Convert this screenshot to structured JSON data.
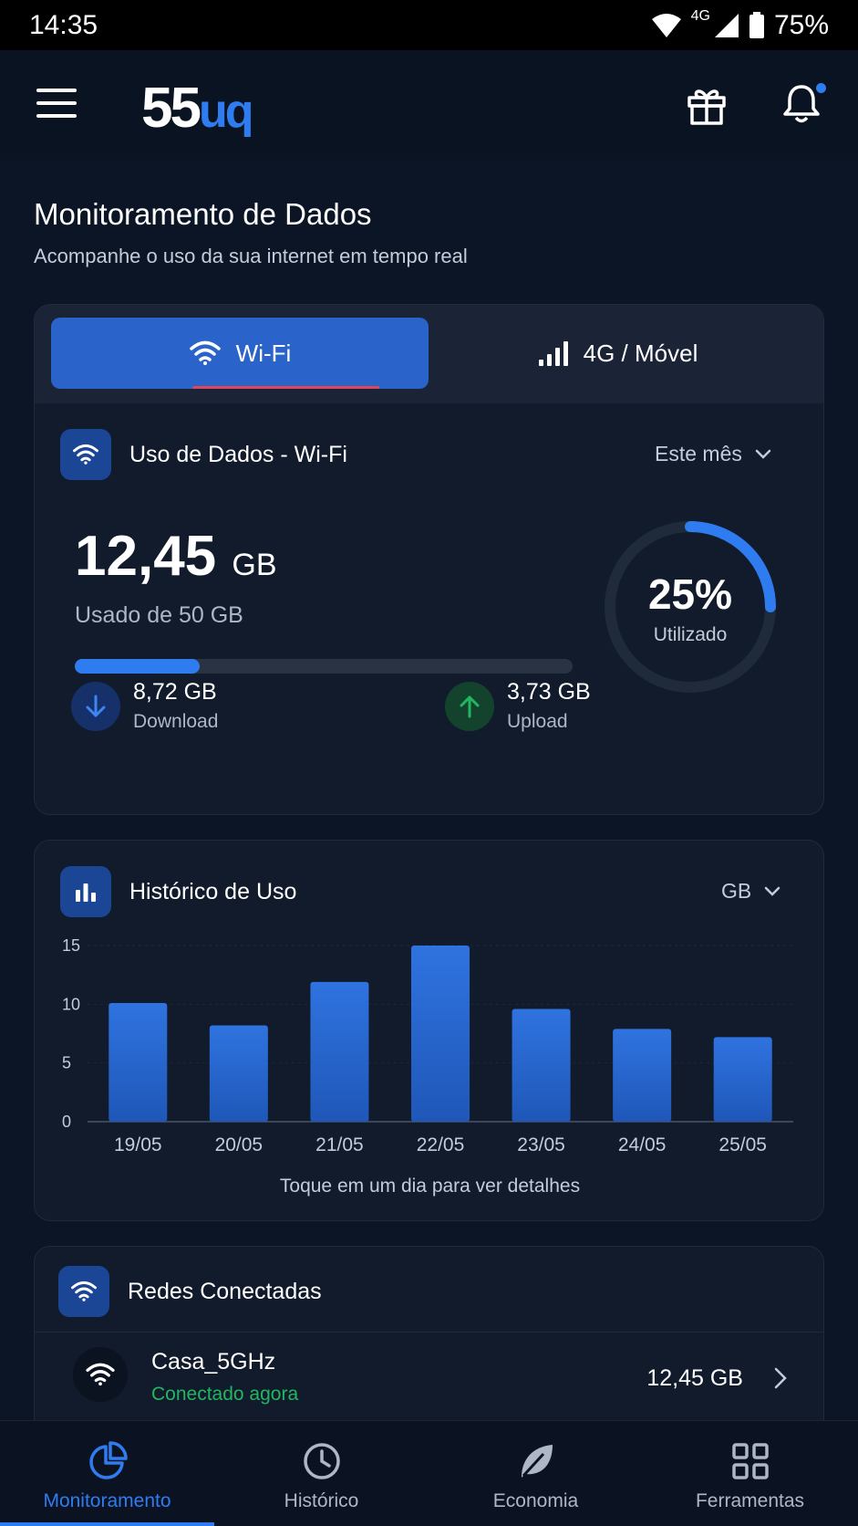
{
  "status_bar": {
    "time": "14:35",
    "network": "4G",
    "battery": "75%"
  },
  "app": {
    "logo_main": "55",
    "logo_accent": "uq"
  },
  "header": {
    "title": "Monitoramento de Dados",
    "subtitle": "Acompanhe o uso da sua internet em tempo real"
  },
  "tabs": {
    "wifi": "Wi-Fi",
    "mobile": "4G / Móvel"
  },
  "usage": {
    "title": "Uso de Dados - Wi-Fi",
    "period": "Este mês",
    "used_value": "12,45",
    "used_unit": "GB",
    "used_of": "Usado de 50 GB",
    "percent_used": 25,
    "percent_label": "25%",
    "percent_caption": "Utilizado",
    "download_value": "8,72 GB",
    "download_label": "Download",
    "upload_value": "3,73 GB",
    "upload_label": "Upload"
  },
  "history": {
    "title": "Histórico de Uso",
    "unit_select": "GB",
    "hint": "Toque em um dia para ver detalhes"
  },
  "chart_data": {
    "type": "bar",
    "categories": [
      "19/05",
      "20/05",
      "21/05",
      "22/05",
      "23/05",
      "24/05",
      "25/05"
    ],
    "values": [
      10.1,
      8.2,
      11.9,
      15.0,
      9.6,
      7.9,
      7.2
    ],
    "ylim": [
      0,
      15
    ],
    "yticks": [
      0,
      5,
      10,
      15
    ],
    "grid": true,
    "color": "#2f73e0"
  },
  "networks": {
    "title": "Redes Conectadas",
    "items": [
      {
        "name": "Casa_5GHz",
        "status": "Conectado agora",
        "usage": "12,45 GB"
      }
    ]
  },
  "bottom_nav": {
    "items": [
      {
        "label": "Monitoramento",
        "icon": "pie-chart-icon"
      },
      {
        "label": "Histórico",
        "icon": "clock-icon"
      },
      {
        "label": "Economia",
        "icon": "leaf-icon"
      },
      {
        "label": "Ferramentas",
        "icon": "grid-icon"
      }
    ]
  },
  "colors": {
    "accent": "#2f7cf0",
    "success": "#23b660",
    "background": "#0c1525",
    "card": "#111b2c"
  }
}
